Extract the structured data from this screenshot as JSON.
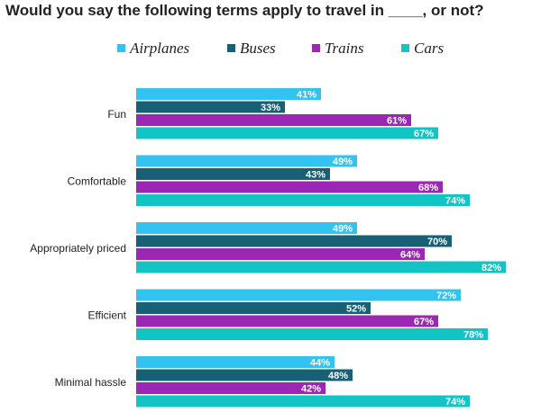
{
  "chart_data": {
    "type": "bar",
    "orientation": "horizontal",
    "title": "Would you say the following terms apply to travel in ____, or not?",
    "categories": [
      "Fun",
      "Comfortable",
      "Appropriately priced",
      "Efficient",
      "Minimal hassle"
    ],
    "series": [
      {
        "name": "Airplanes",
        "color": "#33c3f0",
        "values": [
          41,
          49,
          49,
          72,
          44
        ]
      },
      {
        "name": "Buses",
        "color": "#176075",
        "values": [
          33,
          43,
          70,
          52,
          48
        ]
      },
      {
        "name": "Trains",
        "color": "#9c27b5",
        "values": [
          61,
          68,
          64,
          67,
          42
        ]
      },
      {
        "name": "Cars",
        "color": "#13c4c4",
        "values": [
          67,
          74,
          82,
          78,
          74
        ]
      }
    ],
    "value_suffix": "%",
    "xlim": [
      0,
      100
    ],
    "legend_position": "top",
    "grid": false
  }
}
